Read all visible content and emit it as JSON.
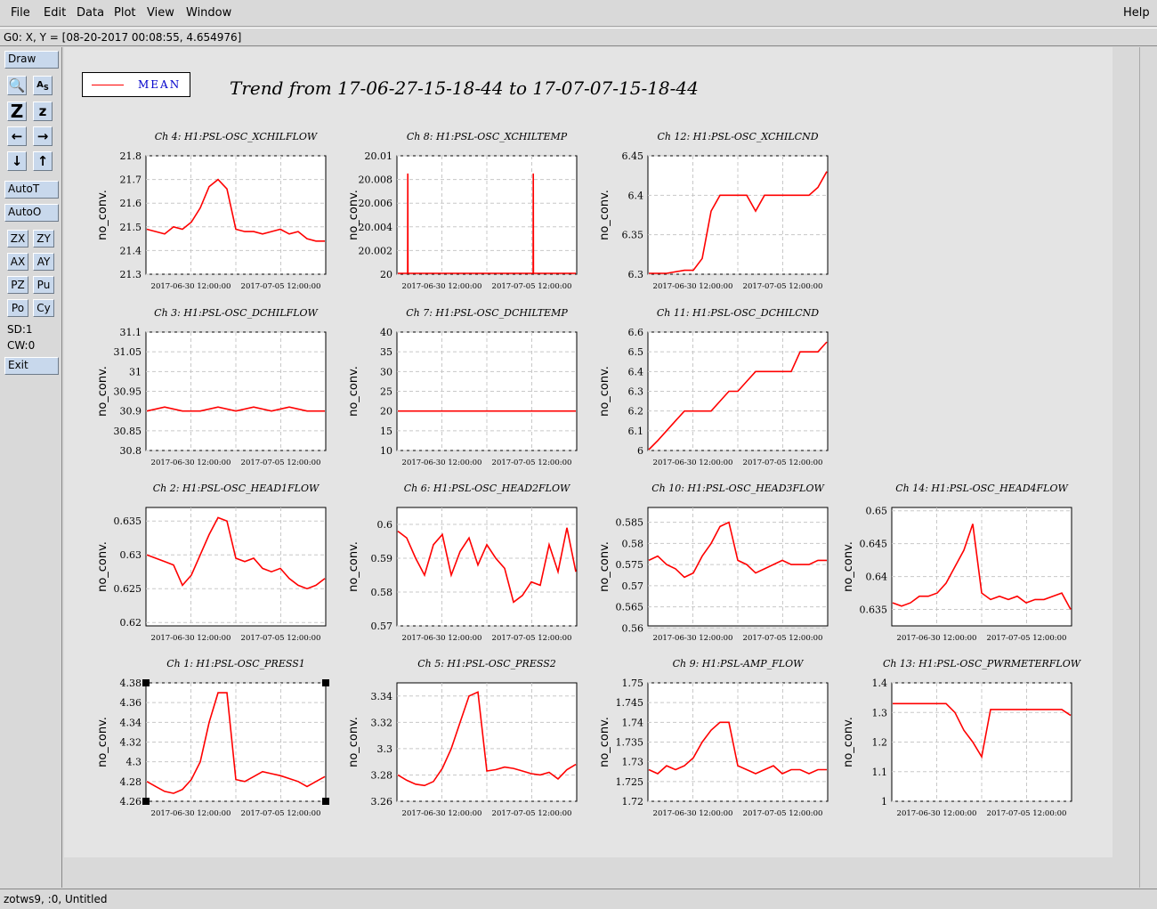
{
  "menu": {
    "file": "File",
    "edit": "Edit",
    "data": "Data",
    "plot": "Plot",
    "view": "View",
    "window": "Window",
    "help": "Help"
  },
  "coords": "G0: X, Y = [08-20-2017 00:08:55, 4.654976]",
  "toolbar": {
    "draw": "Draw",
    "icons": [
      "magnify-icon",
      "text-size-icon",
      "zoom-z-big-icon",
      "zoom-z-small-icon",
      "arrow-left-icon",
      "arrow-right-icon",
      "arrow-down-icon",
      "arrow-up-icon"
    ],
    "auto_t": "AutoT",
    "auto_o": "AutoO",
    "zx": "ZX",
    "zy": "ZY",
    "ax": "AX",
    "ay": "AY",
    "pz": "PZ",
    "pu": "Pu",
    "po": "Po",
    "cy": "Cy",
    "sd": "SD:1",
    "cw": "CW:0",
    "exit": "Exit"
  },
  "legend": {
    "label": "MEAN",
    "color": "#ff0000"
  },
  "title": "Trend from 17-06-27-15-18-44 to 17-07-07-15-18-44",
  "status": "zotws9, :0, Untitled",
  "ylabel": "no_conv.",
  "xticks": [
    "2017-06-30 12:00:00",
    "2017-07-05 12:00:00"
  ],
  "chart_data": [
    {
      "type": "line",
      "title": "Ch 4: H1:PSL-OSC_XCHILFLOW",
      "ylim": [
        21.3,
        21.8
      ],
      "yticks": [
        "21.8",
        "21.7",
        "21.6",
        "21.5",
        "21.4",
        "21.3"
      ],
      "x": [
        0,
        0.5,
        1,
        1.5,
        2,
        2.5,
        3,
        3.5,
        4,
        4.5,
        5,
        5.5,
        6,
        6.5,
        7,
        7.5,
        8,
        8.5,
        9,
        9.5,
        10
      ],
      "y": [
        21.49,
        21.48,
        21.47,
        21.5,
        21.49,
        21.52,
        21.58,
        21.67,
        21.7,
        21.66,
        21.49,
        21.48,
        21.48,
        21.47,
        21.48,
        21.49,
        21.47,
        21.48,
        21.45,
        21.44,
        21.44
      ]
    },
    {
      "type": "line",
      "title": "Ch 8: H1:PSL-OSC_XCHILTEMP",
      "ylim": [
        20,
        20.01
      ],
      "yticks": [
        "20.01",
        "20.008",
        "20.006",
        "20.004",
        "20.002",
        "20"
      ],
      "x": [
        0,
        0.55,
        0.56,
        0.57,
        0.58,
        7.6,
        7.61,
        7.62,
        7.63,
        10
      ],
      "y": [
        20,
        20,
        20.0085,
        20,
        20,
        20,
        20.0085,
        20,
        20,
        20
      ]
    },
    {
      "type": "line",
      "title": "Ch 12: H1:PSL-OSC_XCHILCND",
      "ylim": [
        6.3,
        6.45
      ],
      "yticks": [
        "6.45",
        "6.4",
        "6.35",
        "6.3"
      ],
      "x": [
        0,
        1,
        2,
        2.5,
        3,
        3.5,
        4,
        4.5,
        5,
        5.5,
        6,
        6.5,
        7,
        7.5,
        8,
        8.5,
        9,
        9.5,
        10
      ],
      "y": [
        6.3,
        6.3,
        6.305,
        6.305,
        6.32,
        6.38,
        6.4,
        6.4,
        6.4,
        6.4,
        6.38,
        6.4,
        6.4,
        6.4,
        6.4,
        6.4,
        6.4,
        6.41,
        6.43
      ]
    },
    {
      "type": "line",
      "title": "Ch 3: H1:PSL-OSC_DCHILFLOW",
      "ylim": [
        30.8,
        31.1
      ],
      "yticks": [
        "31.1",
        "31.05",
        "31",
        "30.95",
        "30.9",
        "30.85",
        "30.8"
      ],
      "x": [
        0,
        1,
        2,
        3,
        4,
        5,
        6,
        7,
        8,
        9,
        10
      ],
      "y": [
        30.9,
        30.91,
        30.9,
        30.9,
        30.91,
        30.9,
        30.91,
        30.9,
        30.91,
        30.9,
        30.9
      ]
    },
    {
      "type": "line",
      "title": "Ch 7: H1:PSL-OSC_DCHILTEMP",
      "ylim": [
        10,
        40
      ],
      "yticks": [
        "40",
        "35",
        "30",
        "25",
        "20",
        "15",
        "10"
      ],
      "x": [
        0,
        1,
        2,
        3,
        4,
        5,
        6,
        7,
        8,
        9,
        10
      ],
      "y": [
        20,
        20,
        20,
        20,
        20,
        20,
        20,
        20,
        20,
        20,
        20
      ]
    },
    {
      "type": "line",
      "title": "Ch 11: H1:PSL-OSC_DCHILCND",
      "ylim": [
        6,
        6.6
      ],
      "yticks": [
        "6.6",
        "6.5",
        "6.4",
        "6.3",
        "6.2",
        "6.1",
        "6"
      ],
      "x": [
        0,
        0.5,
        1,
        1.5,
        2,
        2.5,
        3,
        3.5,
        4,
        4.5,
        5,
        5.5,
        6,
        6.5,
        7,
        7.5,
        8,
        8.5,
        9,
        9.5,
        10
      ],
      "y": [
        6,
        6.05,
        6.1,
        6.15,
        6.2,
        6.2,
        6.2,
        6.2,
        6.25,
        6.3,
        6.3,
        6.35,
        6.4,
        6.4,
        6.4,
        6.4,
        6.4,
        6.5,
        6.5,
        6.5,
        6.55
      ]
    },
    {
      "type": "line",
      "title": "Ch 2: H1:PSL-OSC_HEAD1FLOW",
      "ylim": [
        0.6195,
        0.637
      ],
      "yticks": [
        "0.635",
        "0.63",
        "0.625",
        "0.62"
      ],
      "x": [
        0,
        0.5,
        1,
        1.5,
        2,
        2.5,
        3,
        3.5,
        4,
        4.5,
        5,
        5.5,
        6,
        6.5,
        7,
        7.5,
        8,
        8.5,
        9,
        9.5,
        10
      ],
      "y": [
        0.63,
        0.6295,
        0.629,
        0.6285,
        0.6255,
        0.627,
        0.63,
        0.633,
        0.6355,
        0.635,
        0.6295,
        0.629,
        0.6295,
        0.628,
        0.6275,
        0.628,
        0.6265,
        0.6255,
        0.625,
        0.6255,
        0.6265
      ]
    },
    {
      "type": "line",
      "title": "Ch 6: H1:PSL-OSC_HEAD2FLOW",
      "ylim": [
        0.57,
        0.605
      ],
      "yticks": [
        "0.6",
        "0.59",
        "0.58",
        "0.57"
      ],
      "x": [
        0,
        0.5,
        1,
        1.5,
        2,
        2.5,
        3,
        3.5,
        4,
        4.5,
        5,
        5.5,
        6,
        6.5,
        7,
        7.5,
        8,
        8.5,
        9,
        9.5,
        10
      ],
      "y": [
        0.598,
        0.596,
        0.59,
        0.585,
        0.594,
        0.597,
        0.585,
        0.592,
        0.596,
        0.588,
        0.594,
        0.59,
        0.587,
        0.577,
        0.579,
        0.583,
        0.582,
        0.594,
        0.586,
        0.599,
        0.586
      ]
    },
    {
      "type": "line",
      "title": "Ch 10: H1:PSL-OSC_HEAD3FLOW",
      "ylim": [
        0.5605,
        0.5885
      ],
      "yticks": [
        "0.585",
        "0.58",
        "0.575",
        "0.57",
        "0.565",
        "0.56"
      ],
      "x": [
        0,
        0.5,
        1,
        1.5,
        2,
        2.5,
        3,
        3.5,
        4,
        4.5,
        5,
        5.5,
        6,
        6.5,
        7,
        7.5,
        8,
        8.5,
        9,
        9.5,
        10
      ],
      "y": [
        0.576,
        0.577,
        0.575,
        0.574,
        0.572,
        0.573,
        0.577,
        0.58,
        0.584,
        0.585,
        0.576,
        0.575,
        0.573,
        0.574,
        0.575,
        0.576,
        0.575,
        0.575,
        0.575,
        0.576,
        0.576
      ]
    },
    {
      "type": "line",
      "title": "Ch 14: H1:PSL-OSC_HEAD4FLOW",
      "ylim": [
        0.6325,
        0.6505
      ],
      "yticks": [
        "0.65",
        "0.645",
        "0.64",
        "0.635"
      ],
      "x": [
        0,
        0.5,
        1,
        1.5,
        2,
        2.5,
        3,
        3.5,
        4,
        4.5,
        5,
        5.5,
        6,
        6.5,
        7,
        7.5,
        8,
        8.5,
        9,
        9.5,
        10
      ],
      "y": [
        0.636,
        0.6355,
        0.636,
        0.637,
        0.637,
        0.6375,
        0.639,
        0.6415,
        0.644,
        0.648,
        0.6375,
        0.6365,
        0.637,
        0.6365,
        0.637,
        0.636,
        0.6365,
        0.6365,
        0.637,
        0.6375,
        0.635
      ]
    },
    {
      "type": "line",
      "title": "Ch 1: H1:PSL-OSC_PRESS1",
      "ylim": [
        4.26,
        4.38
      ],
      "yticks": [
        "4.38",
        "4.36",
        "4.34",
        "4.32",
        "4.3",
        "4.28",
        "4.26"
      ],
      "x": [
        0,
        0.5,
        1,
        1.5,
        2,
        2.5,
        3,
        3.5,
        4,
        4.5,
        5,
        5.5,
        6,
        6.5,
        7,
        7.5,
        8,
        8.5,
        9,
        9.5,
        10
      ],
      "y": [
        4.28,
        4.275,
        4.27,
        4.268,
        4.272,
        4.282,
        4.3,
        4.34,
        4.37,
        4.37,
        4.282,
        4.28,
        4.285,
        4.29,
        4.288,
        4.286,
        4.283,
        4.28,
        4.275,
        4.28,
        4.285
      ]
    },
    {
      "type": "line",
      "title": "Ch 5: H1:PSL-OSC_PRESS2",
      "ylim": [
        3.26,
        3.35
      ],
      "yticks": [
        "3.34",
        "3.32",
        "3.3",
        "3.28",
        "3.26"
      ],
      "x": [
        0,
        0.5,
        1,
        1.5,
        2,
        2.5,
        3,
        3.5,
        4,
        4.5,
        5,
        5.5,
        6,
        6.5,
        7,
        7.5,
        8,
        8.5,
        9,
        9.5,
        10
      ],
      "y": [
        3.28,
        3.276,
        3.273,
        3.272,
        3.275,
        3.285,
        3.3,
        3.32,
        3.34,
        3.343,
        3.283,
        3.284,
        3.286,
        3.285,
        3.283,
        3.281,
        3.28,
        3.282,
        3.277,
        3.284,
        3.288
      ]
    },
    {
      "type": "line",
      "title": "Ch 9: H1:PSL-AMP_FLOW",
      "ylim": [
        1.72,
        1.75
      ],
      "yticks": [
        "1.75",
        "1.745",
        "1.74",
        "1.735",
        "1.73",
        "1.725",
        "1.72"
      ],
      "x": [
        0,
        0.5,
        1,
        1.5,
        2,
        2.5,
        3,
        3.5,
        4,
        4.5,
        5,
        5.5,
        6,
        6.5,
        7,
        7.5,
        8,
        8.5,
        9,
        9.5,
        10
      ],
      "y": [
        1.728,
        1.727,
        1.729,
        1.728,
        1.729,
        1.731,
        1.735,
        1.738,
        1.74,
        1.74,
        1.729,
        1.728,
        1.727,
        1.728,
        1.729,
        1.727,
        1.728,
        1.728,
        1.727,
        1.728,
        1.728
      ]
    },
    {
      "type": "line",
      "title": "Ch 13: H1:PSL-OSC_PWRMETERFLOW",
      "ylim": [
        1,
        1.4
      ],
      "yticks": [
        "1.4",
        "1.3",
        "1.2",
        "1.1",
        "1"
      ],
      "x": [
        0,
        0.5,
        1,
        1.5,
        2,
        2.5,
        3,
        3.5,
        4,
        4.5,
        5,
        5.5,
        6,
        6.5,
        7,
        7.5,
        8,
        8.5,
        9,
        9.5,
        10
      ],
      "y": [
        1.33,
        1.33,
        1.33,
        1.33,
        1.33,
        1.33,
        1.33,
        1.3,
        1.24,
        1.2,
        1.15,
        1.31,
        1.31,
        1.31,
        1.31,
        1.31,
        1.31,
        1.31,
        1.31,
        1.31,
        1.29
      ]
    }
  ]
}
